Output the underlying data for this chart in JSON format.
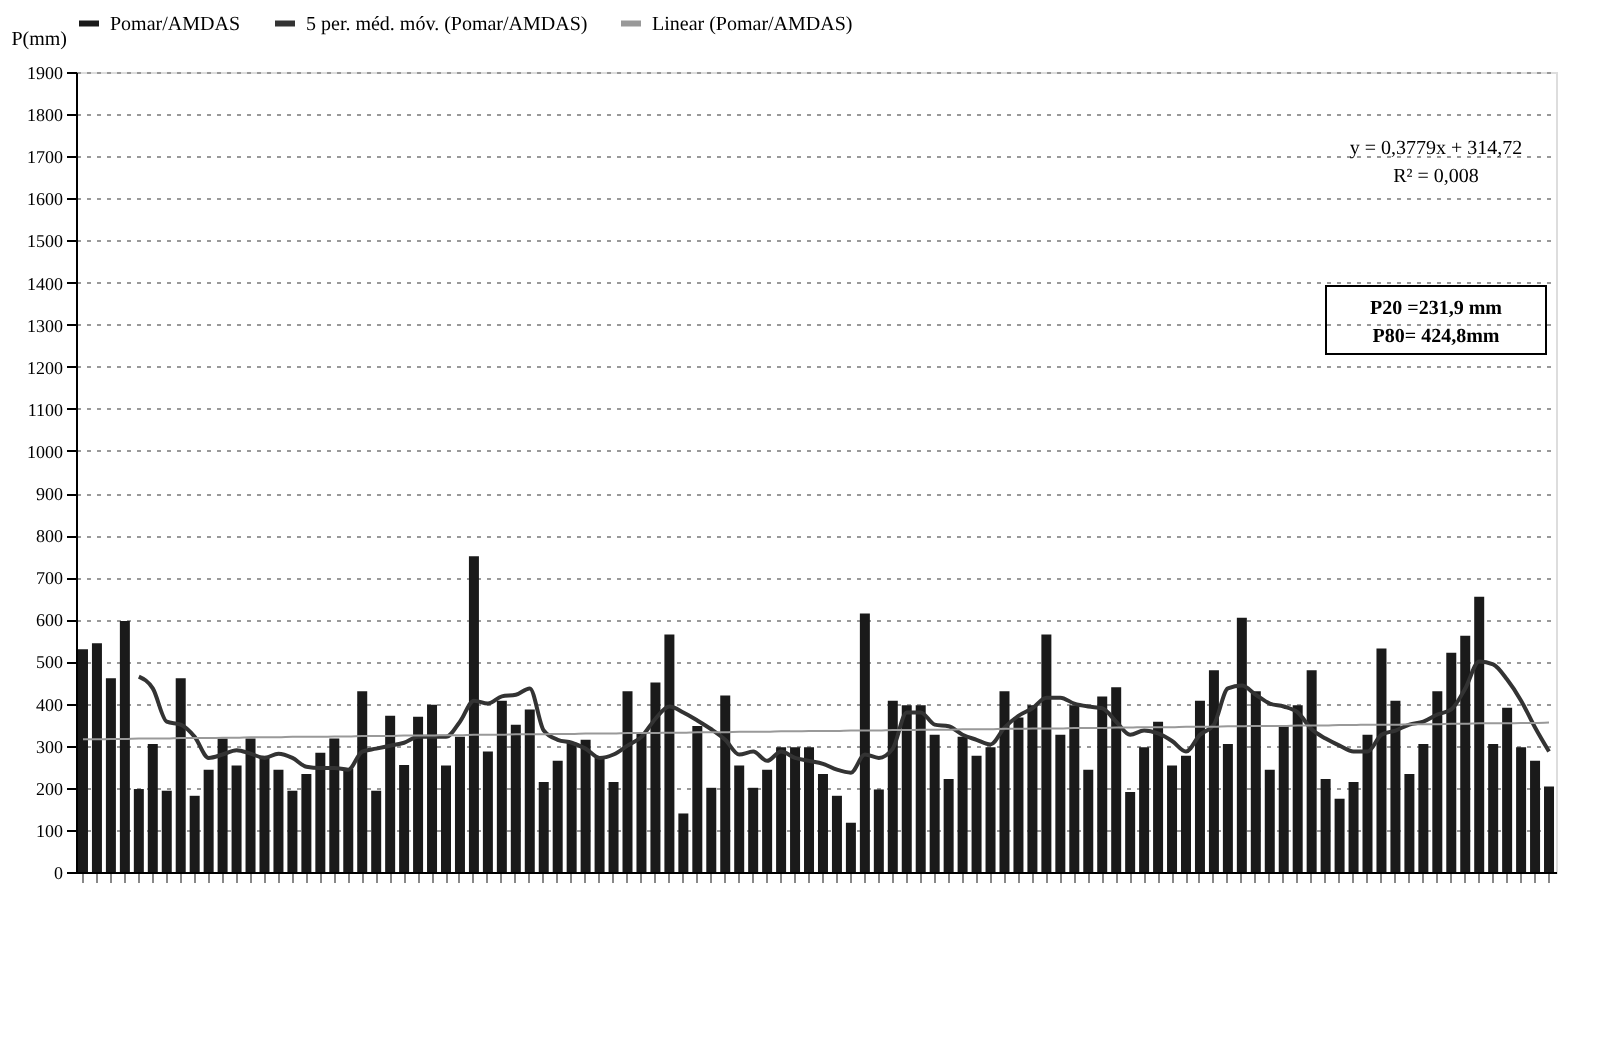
{
  "chart_data": {
    "type": "bar",
    "ylabel": "P(mm)",
    "categories": [
      null,
      null,
      null,
      null,
      null,
      null,
      null,
      null,
      null,
      null,
      null,
      null,
      null,
      null,
      null,
      null,
      null,
      null,
      null,
      null,
      null,
      null,
      null,
      null,
      null,
      null,
      null,
      null,
      null,
      null,
      null,
      null,
      null,
      null,
      null,
      null,
      null,
      null,
      null,
      null,
      null,
      null,
      null,
      null,
      null,
      null,
      null,
      null,
      null,
      null,
      null,
      null,
      null,
      null,
      null,
      null,
      null,
      null,
      null,
      null,
      null,
      null,
      null,
      null,
      null,
      null,
      null,
      null,
      null,
      null,
      null,
      null,
      null,
      null,
      null,
      null,
      null,
      null,
      null,
      null,
      null,
      null,
      null,
      null,
      null,
      null,
      null,
      null,
      null,
      null,
      null,
      null,
      null,
      null,
      null,
      null,
      null,
      null,
      null,
      null,
      null,
      null,
      null,
      null,
      null,
      null
    ],
    "series": [
      {
        "name": "Pomar/AMDAS",
        "color": "#1a1a1a",
        "values": [
          529,
          543,
          460,
          596,
          197,
          304,
          193,
          460,
          181,
          243,
          317,
          253,
          317,
          276,
          243,
          193,
          233,
          283,
          317,
          246,
          429,
          193,
          371,
          254,
          369,
          397,
          253,
          321,
          750,
          286,
          407,
          350,
          386,
          214,
          264,
          307,
          314,
          271,
          214,
          429,
          329,
          450,
          564,
          139,
          347,
          200,
          419,
          253,
          200,
          243,
          296,
          296,
          296,
          233,
          181,
          117,
          614,
          196,
          407,
          396,
          396,
          326,
          221,
          321,
          276,
          296,
          429,
          367,
          396,
          564,
          326,
          396,
          243,
          417,
          439,
          190,
          296,
          357,
          253,
          276,
          407,
          479,
          304,
          604,
          429,
          243,
          346,
          396,
          479,
          221,
          174,
          214,
          326,
          531,
          407,
          233,
          304,
          429,
          521,
          561,
          654,
          304,
          390,
          296,
          264,
          203
        ]
      },
      {
        "name": "5 per. méd. móv. (Pomar/AMDAS)",
        "type": "line",
        "color": "#333333",
        "values": [
          null,
          null,
          null,
          null,
          464,
          436,
          357,
          350,
          321,
          271,
          279,
          289,
          281,
          271,
          281,
          271,
          250,
          247,
          247,
          243,
          286,
          293,
          300,
          307,
          321,
          321,
          321,
          357,
          407,
          400,
          417,
          421,
          436,
          336,
          314,
          307,
          293,
          271,
          279,
          300,
          321,
          364,
          393,
          379,
          360,
          339,
          314,
          279,
          286,
          264,
          286,
          271,
          264,
          257,
          243,
          236,
          279,
          271,
          293,
          379,
          379,
          350,
          346,
          326,
          314,
          303,
          343,
          371,
          389,
          414,
          414,
          400,
          393,
          389,
          357,
          326,
          336,
          329,
          311,
          286,
          326,
          350,
          436,
          443,
          421,
          400,
          393,
          379,
          339,
          317,
          300,
          286,
          286,
          326,
          336,
          350,
          357,
          374,
          386,
          436,
          500,
          493,
          457,
          407,
          343,
          286
        ]
      },
      {
        "name": "Linear (Pomar/AMDAS)",
        "type": "line",
        "color": "#999999",
        "values": [
          315,
          315,
          316,
          316,
          317,
          317,
          317,
          318,
          318,
          318,
          319,
          319,
          320,
          320,
          320,
          321,
          321,
          321,
          322,
          322,
          323,
          323,
          323,
          324,
          324,
          324,
          325,
          325,
          326,
          326,
          326,
          327,
          327,
          327,
          328,
          328,
          329,
          329,
          329,
          330,
          330,
          330,
          331,
          331,
          332,
          332,
          332,
          333,
          333,
          333,
          334,
          334,
          335,
          335,
          335,
          336,
          336,
          336,
          337,
          337,
          338,
          338,
          338,
          339,
          339,
          339,
          340,
          340,
          341,
          341,
          341,
          342,
          342,
          342,
          343,
          343,
          344,
          344,
          344,
          345,
          345,
          345,
          346,
          346,
          347,
          347,
          347,
          348,
          348,
          348,
          349,
          349,
          350,
          350,
          350,
          351,
          351,
          351,
          352,
          352,
          353,
          353,
          353,
          354,
          354,
          355
        ]
      }
    ],
    "ylim": [
      0,
      1900
    ],
    "yticks": [
      0,
      100,
      200,
      300,
      400,
      500,
      600,
      700,
      800,
      900,
      1000,
      1100,
      1200,
      1300,
      1400,
      1500,
      1600,
      1700,
      1800,
      1900
    ],
    "grid": "y",
    "legend": "top",
    "annotations": [
      "y = 0,3779x + 314,72",
      "R² = 0,008",
      "P20 =231,9 mm",
      "P80= 424,8mm"
    ]
  }
}
